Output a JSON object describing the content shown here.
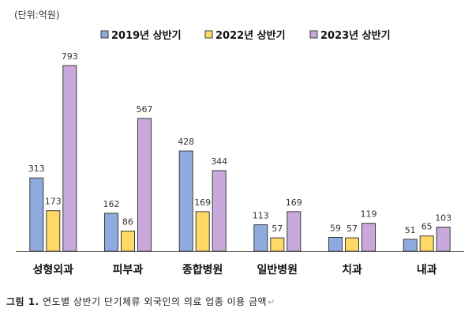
{
  "unit_label": "(단위:억원)",
  "caption": {
    "label": "그림 1.",
    "text": "연도별 상반기 단기체류 외국인의 의료 업종 이용 금액",
    "mark": "↵"
  },
  "chart_data": {
    "type": "bar",
    "title": "",
    "xlabel": "",
    "ylabel": "",
    "ylim": [
      0,
      900
    ],
    "grid": false,
    "legend_position": "top",
    "categories": [
      "성형외과",
      "피부과",
      "종합병원",
      "일반병원",
      "치과",
      "내과"
    ],
    "series": [
      {
        "name": "2019년 상반기",
        "color": "#8FAADC",
        "values": [
          313,
          162,
          428,
          113,
          59,
          51
        ]
      },
      {
        "name": "2022년 상반기",
        "color": "#FFD966",
        "values": [
          173,
          86,
          169,
          57,
          57,
          65
        ]
      },
      {
        "name": "2023년 상반기",
        "color": "#C9A9DC",
        "values": [
          793,
          567,
          344,
          169,
          119,
          103
        ]
      }
    ]
  }
}
